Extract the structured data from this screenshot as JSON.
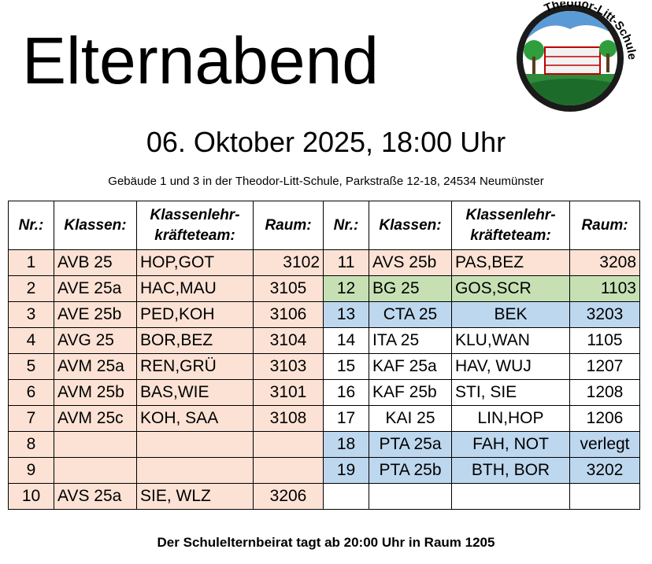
{
  "header": {
    "title": "Elternabend",
    "logo_text": "Theodor-Litt-Schule",
    "date": "06. Oktober 2025, 18:00 Uhr",
    "address": "Gebäude 1 und 3 in der Theodor-Litt-Schule, Parkstraße 12-18, 24534 Neumünster"
  },
  "table": {
    "columns": [
      "Nr.:",
      "Klassen:",
      "Klassenlehr-\nkräfteteam:",
      "Raum:",
      "Nr.:",
      "Klassen:",
      "Klassenlehr-\nkräfteteam:",
      "Raum:"
    ],
    "rows": [
      {
        "left": [
          "1",
          "AVB 25",
          "HOP,GOT",
          "3102"
        ],
        "left_color": "#fbe2d5",
        "right": [
          "11",
          "AVS 25b",
          "PAS,BEZ",
          "3208"
        ],
        "right_color": "#fbe2d5"
      },
      {
        "left": [
          "2",
          "AVE 25a",
          "HAC,MAU",
          "3105"
        ],
        "left_color": "#fbe2d5",
        "right": [
          "12",
          "BG 25",
          "GOS,SCR",
          "1103"
        ],
        "right_color": "#c6e0b4"
      },
      {
        "left": [
          "3",
          "AVE 25b",
          "PED,KOH",
          "3106"
        ],
        "left_color": "#fbe2d5",
        "right": [
          "13",
          "CTA 25",
          "BEK",
          "3203"
        ],
        "right_color": "#bdd7ee"
      },
      {
        "left": [
          "4",
          "AVG 25",
          "BOR,BEZ",
          "3104"
        ],
        "left_color": "#fbe2d5",
        "right": [
          "14",
          "ITA 25",
          "KLU,WAN",
          "1105"
        ],
        "right_color": "#ffffff"
      },
      {
        "left": [
          "5",
          "AVM 25a",
          "REN,GRÜ",
          "3103"
        ],
        "left_color": "#fbe2d5",
        "right": [
          "15",
          "KAF 25a",
          "HAV, WUJ",
          "1207"
        ],
        "right_color": "#ffffff"
      },
      {
        "left": [
          "6",
          "AVM 25b",
          "BAS,WIE",
          "3101"
        ],
        "left_color": "#fbe2d5",
        "right": [
          "16",
          "KAF 25b",
          "STI, SIE",
          "1208"
        ],
        "right_color": "#ffffff"
      },
      {
        "left": [
          "7",
          "AVM 25c",
          "KOH, SAA",
          "3108"
        ],
        "left_color": "#fbe2d5",
        "right": [
          "17",
          "KAI 25",
          "LIN,HOP",
          "1206"
        ],
        "right_color": "#ffffff"
      },
      {
        "left": [
          "8",
          null,
          null,
          null
        ],
        "left_color": "#fbe2d5",
        "right": [
          "18",
          "PTA 25a",
          "FAH, NOT",
          "verlegt"
        ],
        "right_color": "#bdd7ee"
      },
      {
        "left": [
          "9",
          null,
          null,
          null
        ],
        "left_color": "#fbe2d5",
        "right": [
          "19",
          "PTA 25b",
          "BTH, BOR",
          "3202"
        ],
        "right_color": "#bdd7ee"
      },
      {
        "left": [
          "10",
          "AVS 25a",
          "SIE, WLZ",
          "3206"
        ],
        "left_color": "#fbe2d5",
        "right": [
          null,
          null,
          null,
          null
        ],
        "right_color": "#ffffff"
      }
    ]
  },
  "footer": "Der Schulelternbeirat tagt ab 20:00 Uhr in Raum 1205"
}
